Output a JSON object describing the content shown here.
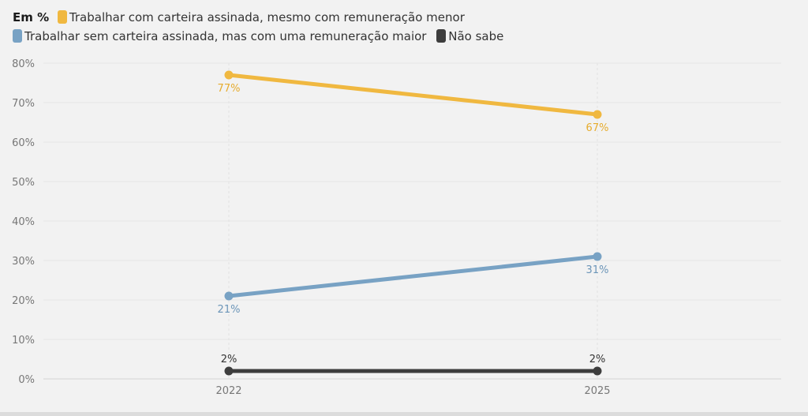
{
  "legend": {
    "prefix": "Em %",
    "items": [
      {
        "label": "Trabalhar com carteira assinada, mesmo com remuneração menor",
        "color": "#f0b840"
      },
      {
        "label": "Trabalhar sem carteira assinada, mas com uma remuneração maior",
        "color": "#78a2c4"
      },
      {
        "label": "Não sabe",
        "color": "#3d3d3d"
      }
    ]
  },
  "chart_data": {
    "type": "line",
    "x": [
      "2022",
      "2025"
    ],
    "ylim": [
      0,
      80
    ],
    "yticks": [
      0,
      10,
      20,
      30,
      40,
      50,
      60,
      70,
      80
    ],
    "ytick_labels": [
      "0%",
      "10%",
      "20%",
      "30%",
      "40%",
      "50%",
      "60%",
      "70%",
      "80%"
    ],
    "grid": true,
    "legend_position": "top-left",
    "series": [
      {
        "name": "Trabalhar com carteira assinada, mesmo com remuneração menor",
        "values": [
          77,
          67
        ],
        "labels": [
          "77%",
          "67%"
        ],
        "color": "#f0b840",
        "label_color": "#e6ac2e",
        "label_position": "below"
      },
      {
        "name": "Trabalhar sem carteira assinada, mas com uma remuneração maior",
        "values": [
          21,
          31
        ],
        "labels": [
          "21%",
          "31%"
        ],
        "color": "#78a2c4",
        "label_color": "#6b95b8",
        "label_position": "below"
      },
      {
        "name": "Não sabe",
        "values": [
          2,
          2
        ],
        "labels": [
          "2%",
          "2%"
        ],
        "color": "#3d3d3d",
        "label_color": "#333333",
        "label_position": "above"
      }
    ]
  }
}
